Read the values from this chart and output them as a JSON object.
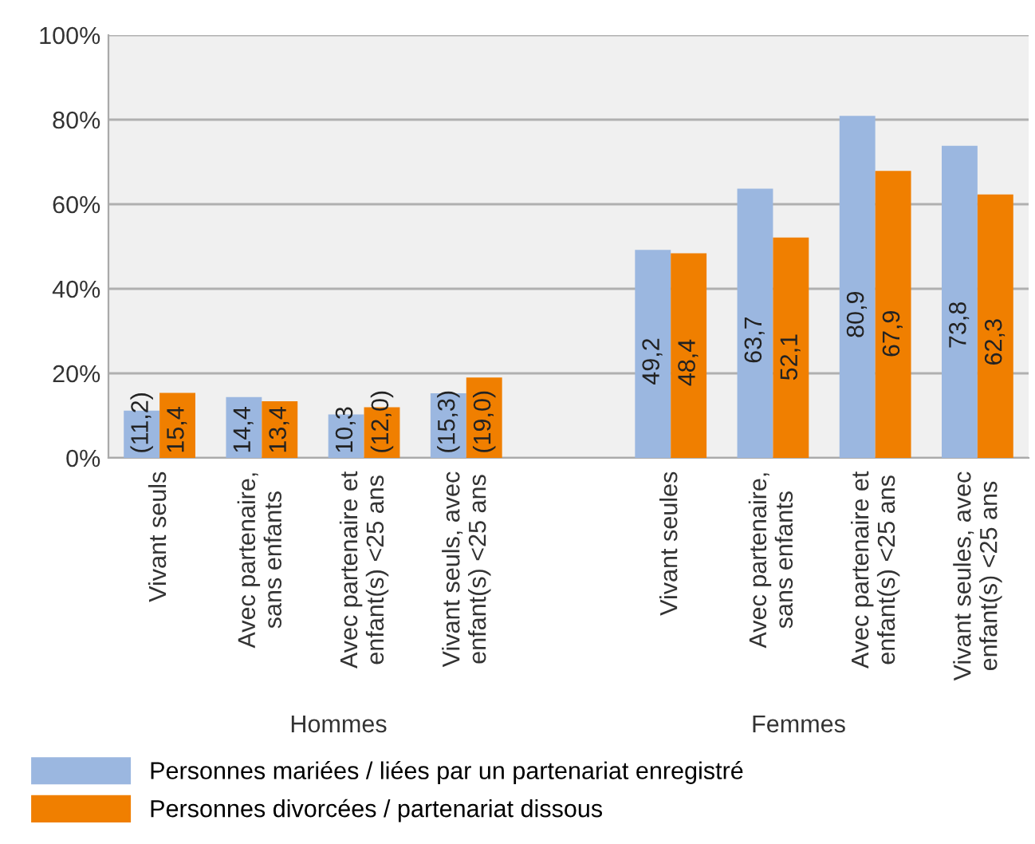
{
  "chart_data": {
    "type": "bar",
    "categories": [
      "Vivant seuls",
      "Avec partenaire,\nsans enfants",
      "Avec partenaire et\nenfant(s) <25 ans",
      "Vivant seuls, avec\nenfant(s) <25 ans",
      null,
      "Vivant seules",
      "Avec partenaire,\nsans enfants",
      "Avec partenaire et\nenfant(s) <25 ans",
      "Vivant seules, avec\nenfant(s) <25 ans"
    ],
    "series": [
      {
        "name": "Personnes mariées / liées par un partenariat enregistré",
        "color": "#9bb7e0",
        "values": [
          11.2,
          14.4,
          10.3,
          15.3,
          null,
          49.2,
          63.7,
          80.9,
          73.8
        ],
        "value_labels": [
          "(11,2)",
          "14,4",
          "10,3",
          "(15,3)",
          null,
          "49,2",
          "63,7",
          "80,9",
          "73,8"
        ]
      },
      {
        "name": "Personnes divorcées / partenariat dissous",
        "color": "#f07f00",
        "values": [
          15.4,
          13.4,
          12.0,
          19.0,
          null,
          48.4,
          52.1,
          67.9,
          62.3
        ],
        "value_labels": [
          "15,4",
          "13,4",
          "(12,0)",
          "(19,0)",
          null,
          "48,4",
          "52,1",
          "67,9",
          "62,3"
        ]
      }
    ],
    "ylim": [
      0,
      100
    ],
    "yticks": [
      {
        "value": 0,
        "label": "0%"
      },
      {
        "value": 20,
        "label": "20%"
      },
      {
        "value": 40,
        "label": "40%"
      },
      {
        "value": 60,
        "label": "60%"
      },
      {
        "value": 80,
        "label": "80%"
      },
      {
        "value": 100,
        "label": "100%"
      }
    ],
    "grid": "y",
    "legend": "bottom",
    "annotations": [
      "Hommes",
      "Femmes"
    ]
  }
}
